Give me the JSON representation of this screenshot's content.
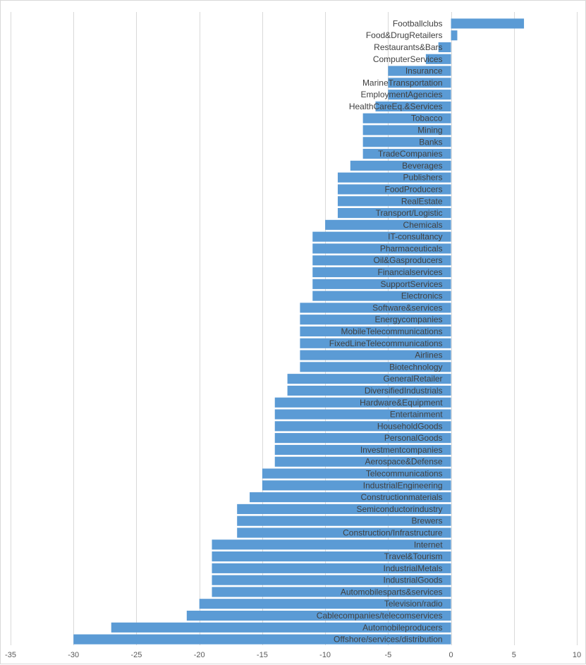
{
  "chart_data": {
    "type": "bar",
    "orientation": "horizontal",
    "categories": [
      "Footballclubs",
      "Food&DrugRetailers",
      "Restaurants&Bars",
      "ComputerServices",
      "Insurance",
      "MarineTransportation",
      "EmploymentAgencies",
      "HealthCareEq.&Services",
      "Tobacco",
      "Mining",
      "Banks",
      "TradeCompanies",
      "Beverages",
      "Publishers",
      "FoodProducers",
      "RealEstate",
      "Transport/Logistic",
      "Chemicals",
      "IT-consultancy",
      "Pharmaceuticals",
      "Oil&Gasproducers",
      "Financialservices",
      "SupportServices",
      "Electronics",
      "Software&services",
      "Energycompanies",
      "MobileTelecommunications",
      "FixedLineTelecommunications",
      "Airlines",
      "Biotechnology",
      "GeneralRetailer",
      "DiversifiedIndustrials",
      "Hardware&Equipment",
      "Entertainment",
      "HouseholdGoods",
      "PersonalGoods",
      "Investmentcompanies",
      "Aerospace&Defense",
      "Telecommunications",
      "IndustrialEngineering",
      "Constructionmaterials",
      "Semiconductorindustry",
      "Brewers",
      "Construction/Infrastructure",
      "Internet",
      "Travel&Tourism",
      "IndustrialMetals",
      "IndustrialGoods",
      "Automobilesparts&services",
      "Television/radio",
      "Cablecompanies/telecomservices",
      "Automobileproducers",
      "Offshore/services/distribution"
    ],
    "values": [
      5.8,
      0.5,
      -1,
      -2,
      -5,
      -5,
      -5,
      -6,
      -7,
      -7,
      -7,
      -7,
      -8,
      -9,
      -9,
      -9,
      -9,
      -10,
      -11,
      -11,
      -11,
      -11,
      -11,
      -11,
      -12,
      -12,
      -12,
      -12,
      -12,
      -12,
      -13,
      -13,
      -14,
      -14,
      -14,
      -14,
      -14,
      -14,
      -15,
      -15,
      -16,
      -17,
      -17,
      -17,
      -19,
      -19,
      -19,
      -19,
      -19,
      -20,
      -21,
      -27,
      -30
    ],
    "xlim": [
      -35,
      10
    ],
    "xticks": [
      "-35",
      "-30",
      "-25",
      "-20",
      "-15",
      "-10",
      "-5",
      "0",
      "5",
      "10"
    ],
    "grid": "vertical",
    "title": "",
    "xlabel": "",
    "ylabel": "",
    "bar_color": "#5b9bd5"
  }
}
